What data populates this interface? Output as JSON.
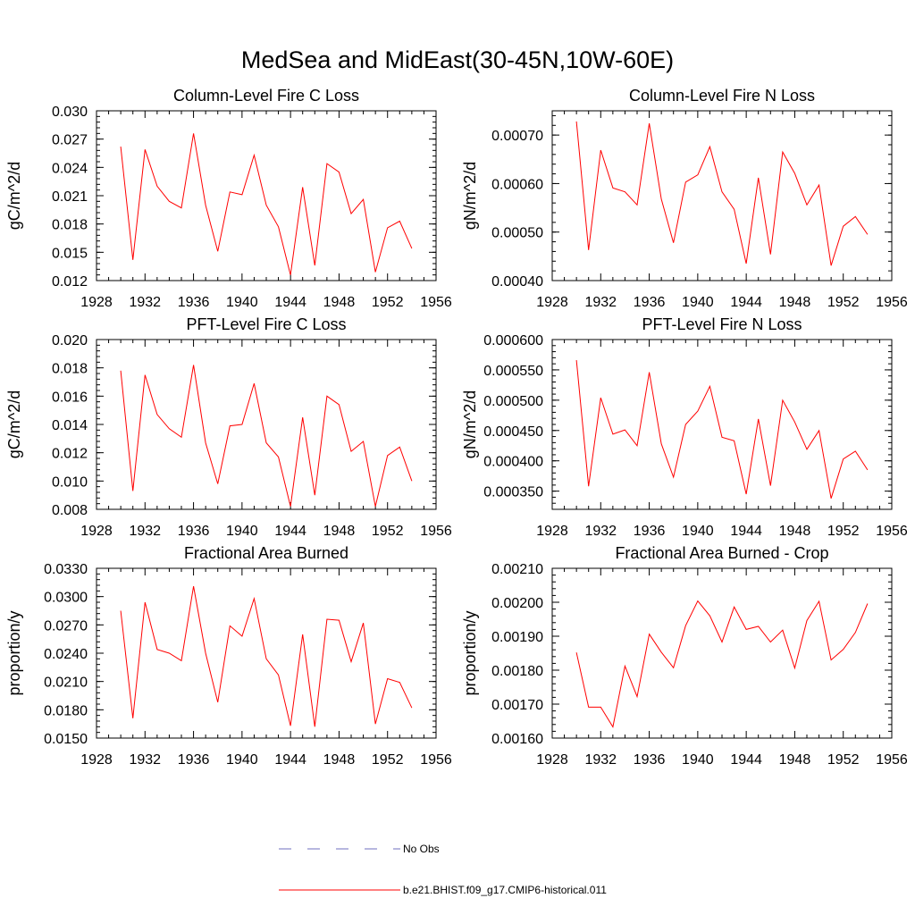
{
  "title": "MedSea and MidEast(30-45N,10W-60E)",
  "legend": [
    {
      "label": "No Obs",
      "color": "#6f6fbf",
      "dash": true
    },
    {
      "label": "b.e21.BHIST.f09_g17.CMIP6-historical.011",
      "color": "#ff0000",
      "dash": false
    }
  ],
  "chart_data": [
    {
      "type": "line",
      "title": "Column-Level Fire C Loss",
      "ylabel": "gC/m^2/d",
      "xlim": [
        1928,
        1956
      ],
      "ylim": [
        0.012,
        0.03
      ],
      "xticks": [
        1928,
        1932,
        1936,
        1940,
        1944,
        1948,
        1952,
        1956
      ],
      "yticks": [
        "0.012",
        "0.015",
        "0.018",
        "0.021",
        "0.024",
        "0.027",
        "0.030"
      ],
      "x": [
        1930,
        1931,
        1932,
        1933,
        1934,
        1935,
        1936,
        1937,
        1938,
        1939,
        1940,
        1941,
        1942,
        1943,
        1944,
        1945,
        1946,
        1947,
        1948,
        1949,
        1950,
        1951,
        1952,
        1953,
        1954
      ],
      "series": [
        {
          "name": "b.e21.BHIST.f09_g17.CMIP6-historical.011",
          "color": "#ff0000",
          "values": [
            0.0262,
            0.0142,
            0.0259,
            0.022,
            0.0204,
            0.0197,
            0.0276,
            0.02,
            0.0151,
            0.0214,
            0.0211,
            0.0253,
            0.02,
            0.0177,
            0.0126,
            0.0219,
            0.0136,
            0.0244,
            0.0235,
            0.0191,
            0.0206,
            0.0129,
            0.0176,
            0.0183,
            0.0154
          ]
        }
      ]
    },
    {
      "type": "line",
      "title": "Column-Level Fire N Loss",
      "ylabel": "gN/m^2/d",
      "xlim": [
        1928,
        1956
      ],
      "ylim": [
        0.0004,
        0.00075
      ],
      "xticks": [
        1928,
        1932,
        1936,
        1940,
        1944,
        1948,
        1952,
        1956
      ],
      "yticks": [
        "0.00040",
        "0.00050",
        "0.00060",
        "0.00070"
      ],
      "x": [
        1930,
        1931,
        1932,
        1933,
        1934,
        1935,
        1936,
        1937,
        1938,
        1939,
        1940,
        1941,
        1942,
        1943,
        1944,
        1945,
        1946,
        1947,
        1948,
        1949,
        1950,
        1951,
        1952,
        1953,
        1954
      ],
      "series": [
        {
          "name": "b.e21.BHIST.f09_g17.CMIP6-historical.011",
          "color": "#ff0000",
          "values": [
            0.000728,
            0.000463,
            0.000669,
            0.000591,
            0.000583,
            0.000556,
            0.000724,
            0.000568,
            0.000478,
            0.000603,
            0.000618,
            0.000676,
            0.000583,
            0.000547,
            0.000435,
            0.000612,
            0.000454,
            0.000665,
            0.000621,
            0.000556,
            0.000597,
            0.000431,
            0.000512,
            0.000532,
            0.000495
          ]
        }
      ]
    },
    {
      "type": "line",
      "title": "PFT-Level Fire C Loss",
      "ylabel": "gC/m^2/d",
      "xlim": [
        1928,
        1956
      ],
      "ylim": [
        0.008,
        0.02
      ],
      "xticks": [
        1928,
        1932,
        1936,
        1940,
        1944,
        1948,
        1952,
        1956
      ],
      "yticks": [
        "0.008",
        "0.010",
        "0.012",
        "0.014",
        "0.016",
        "0.018",
        "0.020"
      ],
      "x": [
        1930,
        1931,
        1932,
        1933,
        1934,
        1935,
        1936,
        1937,
        1938,
        1939,
        1940,
        1941,
        1942,
        1943,
        1944,
        1945,
        1946,
        1947,
        1948,
        1949,
        1950,
        1951,
        1952,
        1953,
        1954
      ],
      "series": [
        {
          "name": "b.e21.BHIST.f09_g17.CMIP6-historical.011",
          "color": "#ff0000",
          "values": [
            0.0178,
            0.0093,
            0.0175,
            0.0147,
            0.0137,
            0.0131,
            0.0182,
            0.0127,
            0.0098,
            0.0139,
            0.014,
            0.0169,
            0.0127,
            0.0117,
            0.0082,
            0.0145,
            0.009,
            0.016,
            0.0154,
            0.0121,
            0.0128,
            0.0082,
            0.0118,
            0.0124,
            0.01
          ]
        }
      ]
    },
    {
      "type": "line",
      "title": "PFT-Level Fire N Loss",
      "ylabel": "gN/m^2/d",
      "xlim": [
        1928,
        1956
      ],
      "ylim": [
        0.00032,
        0.0006
      ],
      "xticks": [
        1928,
        1932,
        1936,
        1940,
        1944,
        1948,
        1952,
        1956
      ],
      "yticks": [
        "0.000350",
        "0.000400",
        "0.000450",
        "0.000500",
        "0.000550",
        "0.000600"
      ],
      "x": [
        1930,
        1931,
        1932,
        1933,
        1934,
        1935,
        1936,
        1937,
        1938,
        1939,
        1940,
        1941,
        1942,
        1943,
        1944,
        1945,
        1946,
        1947,
        1948,
        1949,
        1950,
        1951,
        1952,
        1953,
        1954
      ],
      "series": [
        {
          "name": "b.e21.BHIST.f09_g17.CMIP6-historical.011",
          "color": "#ff0000",
          "values": [
            0.000566,
            0.000358,
            0.000504,
            0.000444,
            0.000451,
            0.000425,
            0.000546,
            0.000428,
            0.000373,
            0.00046,
            0.000482,
            0.000523,
            0.000439,
            0.000433,
            0.000345,
            0.000469,
            0.000359,
            0.0005,
            0.000464,
            0.000419,
            0.00045,
            0.000338,
            0.000403,
            0.000416,
            0.000385
          ]
        }
      ]
    },
    {
      "type": "line",
      "title": "Fractional Area Burned",
      "ylabel": "proportion/y",
      "xlim": [
        1928,
        1956
      ],
      "ylim": [
        0.015,
        0.033
      ],
      "xticks": [
        1928,
        1932,
        1936,
        1940,
        1944,
        1948,
        1952,
        1956
      ],
      "yticks": [
        "0.0150",
        "0.0180",
        "0.0210",
        "0.0240",
        "0.0270",
        "0.0300",
        "0.0330"
      ],
      "x": [
        1930,
        1931,
        1932,
        1933,
        1934,
        1935,
        1936,
        1937,
        1938,
        1939,
        1940,
        1941,
        1942,
        1943,
        1944,
        1945,
        1946,
        1947,
        1948,
        1949,
        1950,
        1951,
        1952,
        1953,
        1954
      ],
      "series": [
        {
          "name": "b.e21.BHIST.f09_g17.CMIP6-historical.011",
          "color": "#ff0000",
          "values": [
            0.0285,
            0.0171,
            0.0294,
            0.0244,
            0.024,
            0.0232,
            0.0311,
            0.024,
            0.0188,
            0.0269,
            0.0258,
            0.0298,
            0.0234,
            0.0217,
            0.0163,
            0.026,
            0.0162,
            0.0276,
            0.0275,
            0.0231,
            0.0272,
            0.0165,
            0.0213,
            0.0209,
            0.0182
          ]
        }
      ]
    },
    {
      "type": "line",
      "title": "Fractional Area Burned - Crop",
      "ylabel": "proportion/y",
      "xlim": [
        1928,
        1956
      ],
      "ylim": [
        0.0016,
        0.0021
      ],
      "xticks": [
        1928,
        1932,
        1936,
        1940,
        1944,
        1948,
        1952,
        1956
      ],
      "yticks": [
        "0.00160",
        "0.00170",
        "0.00180",
        "0.00190",
        "0.00200",
        "0.00210"
      ],
      "x": [
        1930,
        1931,
        1932,
        1933,
        1934,
        1935,
        1936,
        1937,
        1938,
        1939,
        1940,
        1941,
        1942,
        1943,
        1944,
        1945,
        1946,
        1947,
        1948,
        1949,
        1950,
        1951,
        1952,
        1953,
        1954
      ],
      "series": [
        {
          "name": "b.e21.BHIST.f09_g17.CMIP6-historical.011",
          "color": "#ff0000",
          "values": [
            0.001852,
            0.001691,
            0.001691,
            0.001633,
            0.001812,
            0.001722,
            0.001906,
            0.001853,
            0.001807,
            0.001931,
            0.002004,
            0.00196,
            0.001883,
            0.001986,
            0.00192,
            0.001929,
            0.001883,
            0.001918,
            0.001806,
            0.001946,
            0.002003,
            0.00183,
            0.001861,
            0.001911,
            0.001996
          ]
        }
      ]
    }
  ]
}
